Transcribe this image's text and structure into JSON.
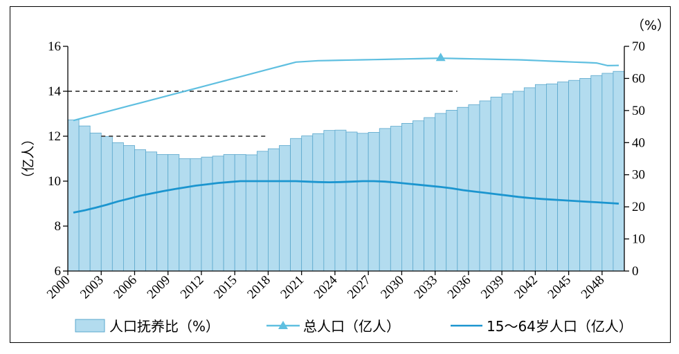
{
  "chart_data": {
    "type": "bar+line",
    "x": [
      2000,
      2001,
      2002,
      2003,
      2004,
      2005,
      2006,
      2007,
      2008,
      2009,
      2010,
      2011,
      2012,
      2013,
      2014,
      2015,
      2016,
      2017,
      2018,
      2019,
      2020,
      2021,
      2022,
      2023,
      2024,
      2025,
      2026,
      2027,
      2028,
      2029,
      2030,
      2031,
      2032,
      2033,
      2034,
      2035,
      2036,
      2037,
      2038,
      2039,
      2040,
      2041,
      2042,
      2043,
      2044,
      2045,
      2046,
      2047,
      2048,
      2049
    ],
    "x_tick_labels": [
      "2000",
      "2003",
      "2006",
      "2009",
      "2012",
      "2015",
      "2018",
      "2021",
      "2024",
      "2027",
      "2030",
      "2033",
      "2036",
      "2039",
      "2042",
      "2045",
      "2048"
    ],
    "left_axis": {
      "label": "（亿人）",
      "ylim": [
        6,
        16
      ],
      "ticks": [
        "6",
        "8",
        "10",
        "12",
        "14",
        "16"
      ]
    },
    "right_axis": {
      "label": "（%）",
      "ylim": [
        0,
        70
      ],
      "ticks": [
        "0",
        "10",
        "20",
        "30",
        "40",
        "50",
        "60",
        "70"
      ]
    },
    "series": [
      {
        "name": "人口抚养比（%）",
        "kind": "bar",
        "axis": "right",
        "color": "#b3dcef",
        "values": [
          47.1,
          45.2,
          43.0,
          41.9,
          40.0,
          39.1,
          37.8,
          37.1,
          36.3,
          36.3,
          35.0,
          35.0,
          35.5,
          35.8,
          36.3,
          36.3,
          36.2,
          37.3,
          38.1,
          39.1,
          41.3,
          42.1,
          42.8,
          43.8,
          43.9,
          43.3,
          42.9,
          43.2,
          44.4,
          45.1,
          46.0,
          46.8,
          47.8,
          49.1,
          50.1,
          51.0,
          51.8,
          53.0,
          54.2,
          55.2,
          56.0,
          57.1,
          58.1,
          58.3,
          58.9,
          59.4,
          60.0,
          60.9,
          61.6,
          62.2
        ]
      },
      {
        "name": "总人口（亿人）",
        "kind": "line",
        "axis": "left",
        "marker": "triangle",
        "marker_year": 2033,
        "color": "#5fbfe0",
        "values": [
          12.7,
          12.83,
          12.96,
          13.09,
          13.22,
          13.35,
          13.48,
          13.61,
          13.74,
          13.87,
          14.0,
          14.13,
          14.26,
          14.39,
          14.52,
          14.65,
          14.78,
          14.91,
          15.04,
          15.17,
          15.3,
          15.33,
          15.36,
          15.37,
          15.38,
          15.39,
          15.4,
          15.41,
          15.42,
          15.43,
          15.44,
          15.45,
          15.46,
          15.47,
          15.46,
          15.45,
          15.44,
          15.43,
          15.42,
          15.41,
          15.4,
          15.38,
          15.36,
          15.34,
          15.32,
          15.3,
          15.28,
          15.26,
          15.14,
          15.15
        ]
      },
      {
        "name": "15～64岁人口（亿人）",
        "kind": "line",
        "axis": "left",
        "color": "#1b95cf",
        "values": [
          8.6,
          8.7,
          8.82,
          8.95,
          9.1,
          9.22,
          9.35,
          9.45,
          9.55,
          9.64,
          9.72,
          9.8,
          9.86,
          9.92,
          9.96,
          10.0,
          10.0,
          10.0,
          10.0,
          10.0,
          10.0,
          9.98,
          9.96,
          9.95,
          9.96,
          9.98,
          10.0,
          10.0,
          9.98,
          9.94,
          9.89,
          9.84,
          9.79,
          9.74,
          9.68,
          9.6,
          9.54,
          9.48,
          9.42,
          9.36,
          9.3,
          9.25,
          9.21,
          9.18,
          9.15,
          9.12,
          9.09,
          9.06,
          9.03,
          9.0
        ]
      }
    ],
    "reference_lines": [
      {
        "axis": "left",
        "value": 14,
        "from": 2000,
        "to": 2035,
        "style": "dashed"
      },
      {
        "axis": "left",
        "value": 12,
        "from": 2003,
        "to": 2018,
        "style": "dashed"
      }
    ],
    "legend": {
      "placement": "bottom",
      "items": [
        "人口抚养比（%）",
        "总人口（亿人）",
        "15～64岁人口（亿人）"
      ]
    }
  }
}
